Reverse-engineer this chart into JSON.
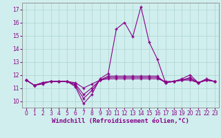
{
  "xlabel": "Windchill (Refroidissement éolien,°C)",
  "background_color": "#d0eeed",
  "grid_color": "#b0d8d5",
  "line_color": "#880088",
  "x_values": [
    0,
    1,
    2,
    3,
    4,
    5,
    6,
    7,
    8,
    9,
    10,
    11,
    12,
    13,
    14,
    15,
    16,
    17,
    18,
    19,
    20,
    21,
    22,
    23
  ],
  "series": [
    [
      11.6,
      11.2,
      11.3,
      11.5,
      11.5,
      11.5,
      11.1,
      9.8,
      10.5,
      11.7,
      12.1,
      15.5,
      16.0,
      14.9,
      17.2,
      14.5,
      13.2,
      11.4,
      11.5,
      11.7,
      12.0,
      11.4,
      11.7,
      11.5
    ],
    [
      11.6,
      11.2,
      11.4,
      11.5,
      11.5,
      11.5,
      11.2,
      10.2,
      10.8,
      11.6,
      11.9,
      11.9,
      11.9,
      11.9,
      11.9,
      11.9,
      11.9,
      11.4,
      11.5,
      11.6,
      11.8,
      11.4,
      11.6,
      11.5
    ],
    [
      11.6,
      11.2,
      11.4,
      11.5,
      11.5,
      11.5,
      11.3,
      10.5,
      11.0,
      11.6,
      11.8,
      11.8,
      11.8,
      11.8,
      11.8,
      11.8,
      11.8,
      11.4,
      11.5,
      11.6,
      11.7,
      11.4,
      11.6,
      11.5
    ],
    [
      11.6,
      11.2,
      11.4,
      11.5,
      11.5,
      11.5,
      11.4,
      11.0,
      11.3,
      11.6,
      11.7,
      11.7,
      11.7,
      11.7,
      11.7,
      11.7,
      11.7,
      11.5,
      11.5,
      11.6,
      11.6,
      11.4,
      11.6,
      11.5
    ]
  ],
  "ylim": [
    9.5,
    17.5
  ],
  "yticks": [
    10,
    11,
    12,
    13,
    14,
    15,
    16,
    17
  ],
  "xlim": [
    -0.5,
    23.5
  ],
  "xticks": [
    0,
    1,
    2,
    3,
    4,
    5,
    6,
    7,
    8,
    9,
    10,
    11,
    12,
    13,
    14,
    15,
    16,
    17,
    18,
    19,
    20,
    21,
    22,
    23
  ],
  "tick_fontsize": 5.5,
  "xlabel_fontsize": 6.5
}
